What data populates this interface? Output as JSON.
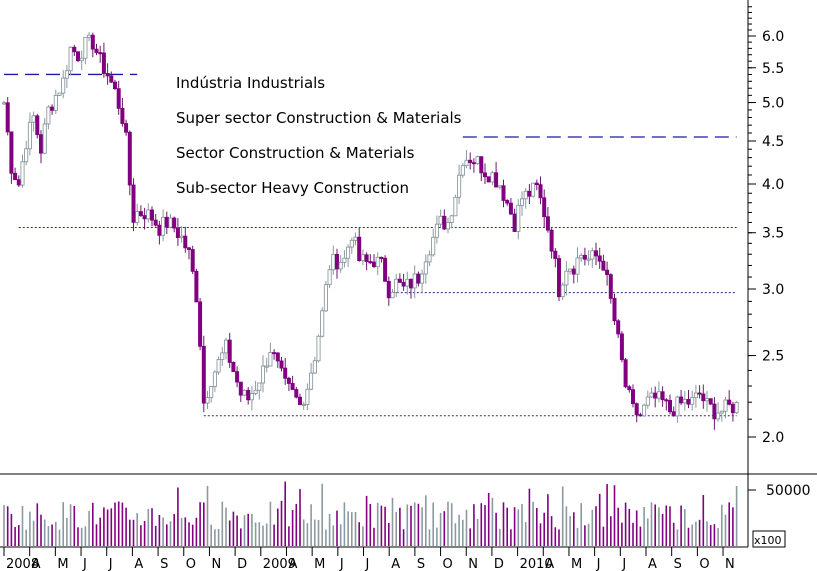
{
  "chart_data": {
    "type": "candlestick",
    "price_axis": {
      "scale": "log",
      "ticks": [
        "6.0",
        "5.5",
        "5.0",
        "4.5",
        "4.0",
        "3.5",
        "3.0",
        "2.5",
        "2.0"
      ]
    },
    "volume_axis": {
      "ticks": [
        "50000"
      ],
      "multiplier_label": "x100"
    },
    "months": [
      {
        "label": "2008",
        "year": true
      },
      {
        "label": "A"
      },
      {
        "label": "M"
      },
      {
        "label": "J"
      },
      {
        "label": "J"
      },
      {
        "label": "A"
      },
      {
        "label": "S"
      },
      {
        "label": "O"
      },
      {
        "label": "N"
      },
      {
        "label": "D"
      },
      {
        "label": "2009",
        "year": true
      },
      {
        "label": "A"
      },
      {
        "label": "M"
      },
      {
        "label": "J"
      },
      {
        "label": "J"
      },
      {
        "label": "A"
      },
      {
        "label": "S"
      },
      {
        "label": "O"
      },
      {
        "label": "N"
      },
      {
        "label": "D"
      },
      {
        "label": "2010",
        "year": true
      },
      {
        "label": "A"
      },
      {
        "label": "M"
      },
      {
        "label": "J"
      },
      {
        "label": "J"
      },
      {
        "label": "A"
      },
      {
        "label": "S"
      },
      {
        "label": "O"
      },
      {
        "label": "N"
      }
    ],
    "annotations": [
      "Indústria Industrials",
      "Super sector Construction & Materials",
      "Sector Construction & Materials",
      "Sub-sector Heavy Construction"
    ],
    "reference_lines": [
      {
        "style": "dashed",
        "price": 5.4,
        "from_week": 0,
        "to_week": 36
      },
      {
        "style": "dashed",
        "price": 4.55,
        "from_week": 124,
        "to_week": 198
      },
      {
        "style": "dotted",
        "price": 3.55,
        "from_week": 4,
        "to_week": 198
      },
      {
        "style": "dotted",
        "price": 2.97,
        "from_week": 104,
        "to_week": 198
      },
      {
        "style": "dotted",
        "price": 2.12,
        "from_week": 54,
        "to_week": 198
      }
    ],
    "price_waypoints": [
      [
        0,
        5.0
      ],
      [
        2,
        4.2
      ],
      [
        4,
        4.0
      ],
      [
        6,
        4.5
      ],
      [
        8,
        4.8
      ],
      [
        10,
        4.4
      ],
      [
        12,
        4.9
      ],
      [
        14,
        5.1
      ],
      [
        16,
        5.3
      ],
      [
        18,
        5.8
      ],
      [
        20,
        5.7
      ],
      [
        22,
        5.85
      ],
      [
        24,
        5.9
      ],
      [
        26,
        5.6
      ],
      [
        28,
        5.4
      ],
      [
        30,
        5.15
      ],
      [
        32,
        4.8
      ],
      [
        33,
        4.5
      ],
      [
        34,
        4.0
      ],
      [
        35,
        3.65
      ],
      [
        36,
        3.7
      ],
      [
        38,
        3.7
      ],
      [
        40,
        3.65
      ],
      [
        42,
        3.55
      ],
      [
        44,
        3.6
      ],
      [
        46,
        3.55
      ],
      [
        48,
        3.45
      ],
      [
        50,
        3.3
      ],
      [
        52,
        2.95
      ],
      [
        53,
        2.6
      ],
      [
        54,
        2.2
      ],
      [
        56,
        2.35
      ],
      [
        58,
        2.45
      ],
      [
        60,
        2.55
      ],
      [
        62,
        2.4
      ],
      [
        64,
        2.25
      ],
      [
        66,
        2.22
      ],
      [
        68,
        2.3
      ],
      [
        70,
        2.4
      ],
      [
        72,
        2.55
      ],
      [
        74,
        2.42
      ],
      [
        76,
        2.3
      ],
      [
        78,
        2.25
      ],
      [
        80,
        2.18
      ],
      [
        82,
        2.3
      ],
      [
        84,
        2.5
      ],
      [
        86,
        2.8
      ],
      [
        88,
        3.2
      ],
      [
        90,
        3.25
      ],
      [
        92,
        3.25
      ],
      [
        94,
        3.5
      ],
      [
        96,
        3.25
      ],
      [
        98,
        3.22
      ],
      [
        100,
        3.25
      ],
      [
        102,
        3.2
      ],
      [
        104,
        3.0
      ],
      [
        106,
        3.05
      ],
      [
        108,
        3.0
      ],
      [
        110,
        3.05
      ],
      [
        112,
        3.1
      ],
      [
        114,
        3.3
      ],
      [
        116,
        3.45
      ],
      [
        118,
        3.6
      ],
      [
        120,
        3.6
      ],
      [
        122,
        3.9
      ],
      [
        124,
        4.3
      ],
      [
        126,
        4.3
      ],
      [
        128,
        4.25
      ],
      [
        130,
        4.15
      ],
      [
        132,
        4.1
      ],
      [
        134,
        4.0
      ],
      [
        136,
        3.8
      ],
      [
        138,
        3.6
      ],
      [
        140,
        3.85
      ],
      [
        142,
        3.9
      ],
      [
        144,
        3.95
      ],
      [
        146,
        3.7
      ],
      [
        148,
        3.4
      ],
      [
        150,
        3.0
      ],
      [
        152,
        3.2
      ],
      [
        154,
        3.2
      ],
      [
        156,
        3.3
      ],
      [
        158,
        3.25
      ],
      [
        160,
        3.28
      ],
      [
        162,
        3.22
      ],
      [
        164,
        2.9
      ],
      [
        166,
        2.6
      ],
      [
        168,
        2.3
      ],
      [
        170,
        2.15
      ],
      [
        172,
        2.12
      ],
      [
        174,
        2.2
      ],
      [
        176,
        2.22
      ],
      [
        178,
        2.2
      ],
      [
        180,
        2.15
      ],
      [
        182,
        2.18
      ],
      [
        184,
        2.2
      ],
      [
        186,
        2.2
      ],
      [
        188,
        2.25
      ],
      [
        190,
        2.18
      ],
      [
        192,
        2.15
      ],
      [
        194,
        2.15
      ],
      [
        196,
        2.17
      ],
      [
        198,
        2.18
      ]
    ]
  }
}
